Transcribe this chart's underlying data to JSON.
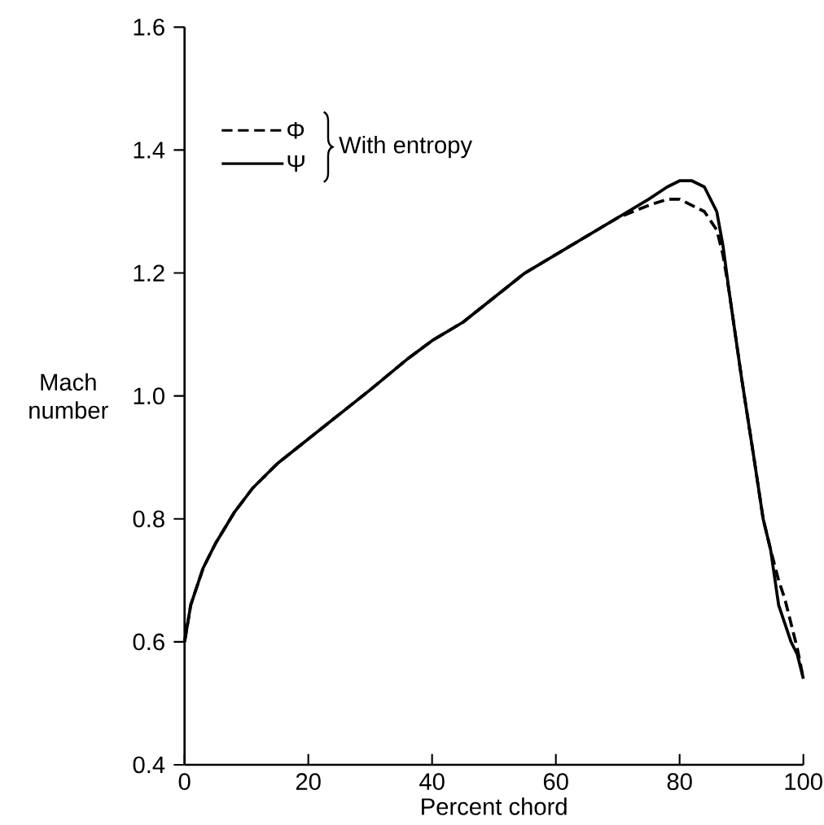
{
  "chart_data": {
    "type": "line",
    "xlabel": "Percent chord",
    "ylabel": "Mach number",
    "legend_title": "With entropy",
    "legend": "top left",
    "xlim": [
      0,
      100
    ],
    "ylim": [
      0.4,
      1.6
    ],
    "xticks": [
      0,
      20,
      40,
      60,
      80,
      100
    ],
    "yticks": [
      0.4,
      0.6,
      0.8,
      {
        "value": 1,
        "label": "1.0"
      },
      1.2,
      1.4,
      1.6
    ],
    "grid": false,
    "x": [
      0,
      1,
      3,
      5,
      8,
      11,
      15,
      20,
      25,
      30,
      36,
      40,
      45,
      50,
      55,
      60,
      65,
      70,
      75,
      78,
      80,
      82,
      84,
      86,
      87,
      88,
      90,
      92,
      93.5,
      94.7,
      96,
      97,
      98,
      99,
      100
    ],
    "series": [
      {
        "name": "Φ",
        "color": "#000000",
        "line_style": "dashed",
        "values": [
          0.6,
          0.66,
          0.72,
          0.76,
          0.81,
          0.85,
          0.89,
          0.93,
          0.97,
          1.01,
          1.06,
          1.09,
          1.12,
          1.16,
          1.2,
          1.23,
          1.26,
          1.29,
          1.31,
          1.32,
          1.32,
          1.31,
          1.3,
          1.27,
          1.23,
          1.17,
          1.03,
          0.9,
          0.8,
          0.75,
          0.7,
          0.67,
          0.63,
          0.59,
          0.54
        ]
      },
      {
        "name": "Ψ",
        "color": "#000000",
        "line_style": "solid",
        "values": [
          0.6,
          0.66,
          0.72,
          0.76,
          0.81,
          0.85,
          0.89,
          0.93,
          0.97,
          1.01,
          1.06,
          1.09,
          1.12,
          1.16,
          1.2,
          1.23,
          1.26,
          1.29,
          1.32,
          1.34,
          1.35,
          1.35,
          1.34,
          1.3,
          1.245,
          1.17,
          1.03,
          0.9,
          0.8,
          0.75,
          0.66,
          0.63,
          0.6,
          0.58,
          0.54
        ]
      }
    ]
  }
}
